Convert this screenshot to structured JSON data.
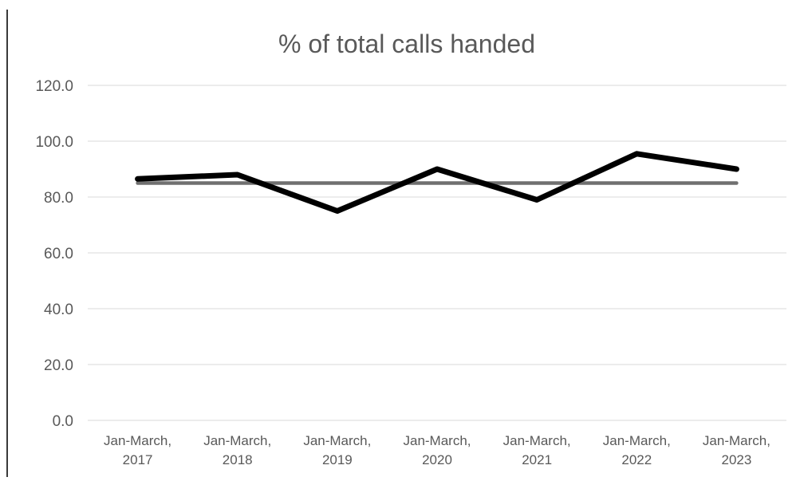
{
  "chart_data": {
    "type": "line",
    "title": "% of total calls handed",
    "xlabel": "",
    "ylabel": "",
    "categories": [
      [
        "Jan-March,",
        "2017"
      ],
      [
        "Jan-March,",
        "2018"
      ],
      [
        "Jan-March,",
        "2019"
      ],
      [
        "Jan-March,",
        "2020"
      ],
      [
        "Jan-March,",
        "2021"
      ],
      [
        "Jan-March,",
        "2022"
      ],
      [
        "Jan-March,",
        "2023"
      ]
    ],
    "yticks": [
      "0.0",
      "20.0",
      "40.0",
      "60.0",
      "80.0",
      "100.0",
      "120.0"
    ],
    "ylim": [
      0,
      120
    ],
    "grid": true,
    "legend": "none",
    "series": [
      {
        "values": [
          86.5,
          88,
          75,
          90,
          79,
          95.5,
          90
        ],
        "color": "#000000"
      },
      {
        "values": [
          85,
          85,
          85,
          85,
          85,
          85,
          85
        ],
        "color": "#707070"
      }
    ],
    "colors": {
      "grid": "#d9d9d9",
      "text": "#595959",
      "title": "#595959"
    }
  }
}
